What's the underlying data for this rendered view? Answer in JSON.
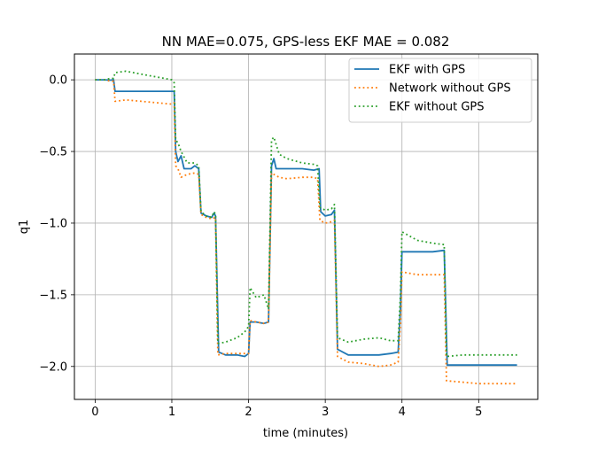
{
  "chart_data": {
    "type": "line",
    "title": "NN MAE=0.075, GPS-less EKF MAE = 0.082",
    "xlabel": "time (minutes)",
    "ylabel": "q1",
    "xlim": [
      -0.27,
      5.77
    ],
    "ylim": [
      -2.23,
      0.18
    ],
    "xticks": [
      0,
      1,
      2,
      3,
      4,
      5
    ],
    "xtick_labels": [
      "0",
      "1",
      "2",
      "3",
      "4",
      "5"
    ],
    "yticks": [
      0.0,
      -0.5,
      -1.0,
      -1.5,
      -2.0
    ],
    "ytick_labels": [
      "0.0",
      "−0.5",
      "−1.0",
      "−1.5",
      "−2.0"
    ],
    "grid": true,
    "legend_position": "top-right",
    "series": [
      {
        "name": "EKF with GPS",
        "color": "#1f77b4",
        "style": "solid",
        "points": [
          [
            0.0,
            0.0
          ],
          [
            0.12,
            0.0
          ],
          [
            0.2,
            -0.002
          ],
          [
            0.24,
            0.0
          ],
          [
            0.26,
            -0.08
          ],
          [
            0.4,
            -0.08
          ],
          [
            0.6,
            -0.08
          ],
          [
            0.8,
            -0.08
          ],
          [
            1.0,
            -0.08
          ],
          [
            1.03,
            -0.08
          ],
          [
            1.05,
            -0.5
          ],
          [
            1.08,
            -0.57
          ],
          [
            1.12,
            -0.53
          ],
          [
            1.16,
            -0.62
          ],
          [
            1.25,
            -0.62
          ],
          [
            1.3,
            -0.6
          ],
          [
            1.35,
            -0.62
          ],
          [
            1.38,
            -0.93
          ],
          [
            1.45,
            -0.95
          ],
          [
            1.52,
            -0.96
          ],
          [
            1.55,
            -0.93
          ],
          [
            1.57,
            -0.95
          ],
          [
            1.61,
            -1.9
          ],
          [
            1.7,
            -1.92
          ],
          [
            1.85,
            -1.92
          ],
          [
            1.95,
            -1.93
          ],
          [
            2.0,
            -1.91
          ],
          [
            2.02,
            -1.69
          ],
          [
            2.1,
            -1.69
          ],
          [
            2.2,
            -1.7
          ],
          [
            2.26,
            -1.69
          ],
          [
            2.3,
            -0.6
          ],
          [
            2.33,
            -0.55
          ],
          [
            2.36,
            -0.62
          ],
          [
            2.5,
            -0.62
          ],
          [
            2.7,
            -0.62
          ],
          [
            2.85,
            -0.63
          ],
          [
            2.92,
            -0.62
          ],
          [
            2.94,
            -0.92
          ],
          [
            3.0,
            -0.95
          ],
          [
            3.08,
            -0.94
          ],
          [
            3.12,
            -0.91
          ],
          [
            3.16,
            -1.88
          ],
          [
            3.3,
            -1.92
          ],
          [
            3.5,
            -1.92
          ],
          [
            3.7,
            -1.92
          ],
          [
            3.85,
            -1.91
          ],
          [
            3.95,
            -1.9
          ],
          [
            3.98,
            -1.6
          ],
          [
            4.0,
            -1.2
          ],
          [
            4.2,
            -1.2
          ],
          [
            4.4,
            -1.2
          ],
          [
            4.55,
            -1.19
          ],
          [
            4.59,
            -1.99
          ],
          [
            4.8,
            -1.99
          ],
          [
            5.0,
            -1.99
          ],
          [
            5.2,
            -1.99
          ],
          [
            5.5,
            -1.99
          ]
        ]
      },
      {
        "name": "Network without GPS",
        "color": "#ff7f0e",
        "style": "dotted",
        "points": [
          [
            0.0,
            0.0
          ],
          [
            0.12,
            0.0
          ],
          [
            0.2,
            -0.01
          ],
          [
            0.24,
            -0.01
          ],
          [
            0.26,
            -0.15
          ],
          [
            0.4,
            -0.14
          ],
          [
            0.6,
            -0.15
          ],
          [
            0.8,
            -0.16
          ],
          [
            1.0,
            -0.17
          ],
          [
            1.03,
            -0.16
          ],
          [
            1.05,
            -0.6
          ],
          [
            1.08,
            -0.62
          ],
          [
            1.12,
            -0.68
          ],
          [
            1.2,
            -0.66
          ],
          [
            1.3,
            -0.65
          ],
          [
            1.35,
            -0.66
          ],
          [
            1.38,
            -0.94
          ],
          [
            1.45,
            -0.96
          ],
          [
            1.52,
            -0.97
          ],
          [
            1.57,
            -0.96
          ],
          [
            1.6,
            -1.92
          ],
          [
            1.7,
            -1.91
          ],
          [
            1.85,
            -1.91
          ],
          [
            1.95,
            -1.91
          ],
          [
            2.0,
            -1.91
          ],
          [
            2.02,
            -1.68
          ],
          [
            2.1,
            -1.69
          ],
          [
            2.2,
            -1.7
          ],
          [
            2.26,
            -1.69
          ],
          [
            2.3,
            -0.65
          ],
          [
            2.33,
            -0.66
          ],
          [
            2.4,
            -0.68
          ],
          [
            2.5,
            -0.69
          ],
          [
            2.7,
            -0.68
          ],
          [
            2.85,
            -0.68
          ],
          [
            2.9,
            -0.69
          ],
          [
            2.93,
            -0.98
          ],
          [
            3.0,
            -1.0
          ],
          [
            3.08,
            -0.99
          ],
          [
            3.12,
            -0.98
          ],
          [
            3.16,
            -1.93
          ],
          [
            3.3,
            -1.97
          ],
          [
            3.5,
            -1.98
          ],
          [
            3.7,
            -2.0
          ],
          [
            3.85,
            -1.99
          ],
          [
            3.95,
            -1.97
          ],
          [
            3.98,
            -1.7
          ],
          [
            4.0,
            -1.34
          ],
          [
            4.2,
            -1.36
          ],
          [
            4.4,
            -1.36
          ],
          [
            4.55,
            -1.36
          ],
          [
            4.58,
            -2.1
          ],
          [
            4.8,
            -2.11
          ],
          [
            5.0,
            -2.12
          ],
          [
            5.2,
            -2.12
          ],
          [
            5.5,
            -2.12
          ]
        ]
      },
      {
        "name": "EKF without GPS",
        "color": "#2ca02c",
        "style": "dotted",
        "points": [
          [
            0.0,
            0.0
          ],
          [
            0.12,
            0.0
          ],
          [
            0.2,
            0.01
          ],
          [
            0.24,
            0.01
          ],
          [
            0.26,
            0.05
          ],
          [
            0.4,
            0.06
          ],
          [
            0.6,
            0.04
          ],
          [
            0.8,
            0.02
          ],
          [
            1.0,
            0.0
          ],
          [
            1.03,
            -0.02
          ],
          [
            1.05,
            -0.42
          ],
          [
            1.08,
            -0.44
          ],
          [
            1.12,
            -0.5
          ],
          [
            1.2,
            -0.58
          ],
          [
            1.3,
            -0.58
          ],
          [
            1.35,
            -0.6
          ],
          [
            1.38,
            -0.92
          ],
          [
            1.45,
            -0.95
          ],
          [
            1.52,
            -0.96
          ],
          [
            1.55,
            -0.92
          ],
          [
            1.57,
            -0.94
          ],
          [
            1.6,
            -1.84
          ],
          [
            1.7,
            -1.83
          ],
          [
            1.85,
            -1.8
          ],
          [
            1.95,
            -1.76
          ],
          [
            2.0,
            -1.72
          ],
          [
            2.02,
            -1.45
          ],
          [
            2.1,
            -1.52
          ],
          [
            2.2,
            -1.5
          ],
          [
            2.26,
            -1.6
          ],
          [
            2.3,
            -0.42
          ],
          [
            2.33,
            -0.4
          ],
          [
            2.4,
            -0.52
          ],
          [
            2.5,
            -0.55
          ],
          [
            2.7,
            -0.58
          ],
          [
            2.85,
            -0.59
          ],
          [
            2.9,
            -0.6
          ],
          [
            2.93,
            -0.89
          ],
          [
            3.0,
            -0.91
          ],
          [
            3.08,
            -0.9
          ],
          [
            3.12,
            -0.87
          ],
          [
            3.16,
            -1.8
          ],
          [
            3.3,
            -1.83
          ],
          [
            3.5,
            -1.81
          ],
          [
            3.7,
            -1.8
          ],
          [
            3.85,
            -1.82
          ],
          [
            3.95,
            -1.82
          ],
          [
            3.98,
            -1.5
          ],
          [
            4.0,
            -1.06
          ],
          [
            4.2,
            -1.12
          ],
          [
            4.4,
            -1.14
          ],
          [
            4.55,
            -1.15
          ],
          [
            4.58,
            -1.93
          ],
          [
            4.8,
            -1.92
          ],
          [
            5.0,
            -1.92
          ],
          [
            5.2,
            -1.92
          ],
          [
            5.5,
            -1.92
          ]
        ]
      }
    ]
  }
}
